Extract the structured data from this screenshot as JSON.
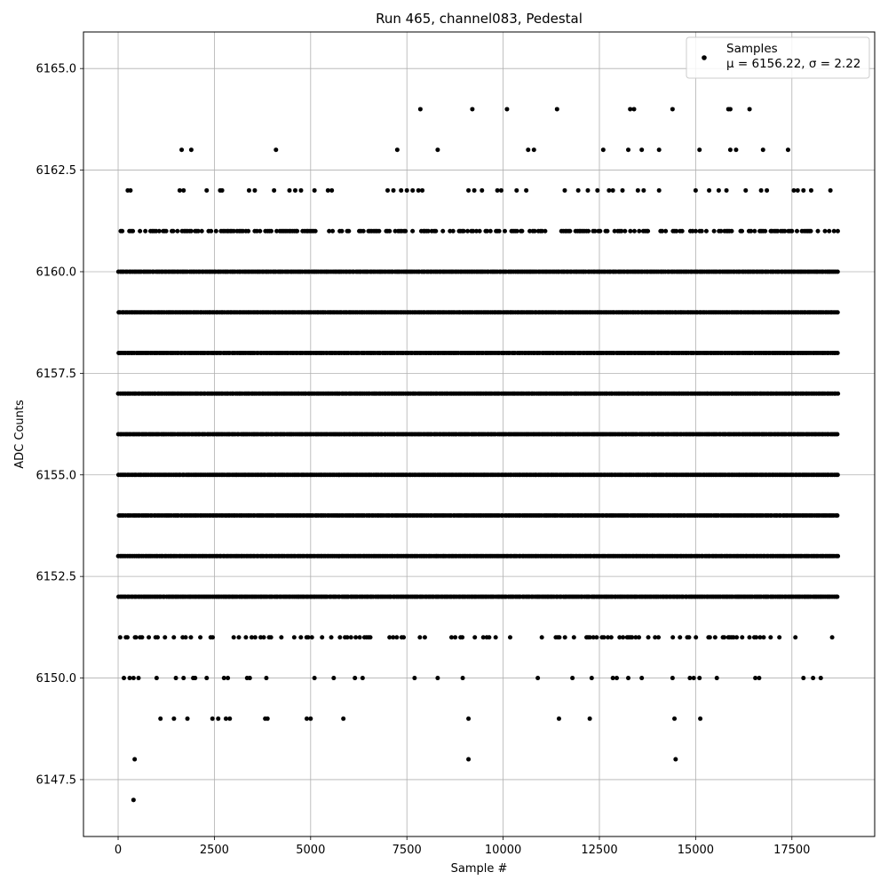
{
  "chart_data": {
    "type": "scatter",
    "title": "Run 465, channel083, Pedestal",
    "xlabel": "Sample #",
    "ylabel": "ADC Counts",
    "xlim": [
      -900,
      19650
    ],
    "ylim": [
      6146.1,
      6165.9
    ],
    "xticks": [
      0,
      2500,
      5000,
      7500,
      10000,
      12500,
      15000,
      17500
    ],
    "yticks": [
      6147.5,
      6150.0,
      6152.5,
      6155.0,
      6157.5,
      6160.0,
      6162.5,
      6165.0
    ],
    "grid": true,
    "legend_position": "top-right",
    "color": "#000000",
    "series": [
      {
        "name": "Samples",
        "stats_label": "μ = 6156.22, σ = 2.22",
        "n_samples": 18750,
        "dense_levels": [
          6152,
          6153,
          6154,
          6155,
          6156,
          6157,
          6158,
          6159,
          6160
        ],
        "sparse_points": [
          {
            "x": 400,
            "y": 6147
          },
          {
            "x": 430,
            "y": 6148
          },
          {
            "x": 9100,
            "y": 6148
          },
          {
            "x": 14480,
            "y": 6148
          },
          {
            "x": 1100,
            "y": 6149
          },
          {
            "x": 1450,
            "y": 6149
          },
          {
            "x": 1800,
            "y": 6149
          },
          {
            "x": 2450,
            "y": 6149
          },
          {
            "x": 2600,
            "y": 6149
          },
          {
            "x": 2800,
            "y": 6149
          },
          {
            "x": 2900,
            "y": 6149
          },
          {
            "x": 3820,
            "y": 6149
          },
          {
            "x": 3880,
            "y": 6149
          },
          {
            "x": 4900,
            "y": 6149
          },
          {
            "x": 5000,
            "y": 6149
          },
          {
            "x": 5850,
            "y": 6149
          },
          {
            "x": 9100,
            "y": 6149
          },
          {
            "x": 11450,
            "y": 6149
          },
          {
            "x": 12250,
            "y": 6149
          },
          {
            "x": 14450,
            "y": 6149
          },
          {
            "x": 15120,
            "y": 6149
          },
          {
            "x": 150,
            "y": 6150
          },
          {
            "x": 300,
            "y": 6150
          },
          {
            "x": 400,
            "y": 6150
          },
          {
            "x": 530,
            "y": 6150
          },
          {
            "x": 1000,
            "y": 6150
          },
          {
            "x": 1500,
            "y": 6150
          },
          {
            "x": 1700,
            "y": 6150
          },
          {
            "x": 1950,
            "y": 6150
          },
          {
            "x": 2000,
            "y": 6150
          },
          {
            "x": 2300,
            "y": 6150
          },
          {
            "x": 2750,
            "y": 6150
          },
          {
            "x": 2850,
            "y": 6150
          },
          {
            "x": 3350,
            "y": 6150
          },
          {
            "x": 3420,
            "y": 6150
          },
          {
            "x": 3850,
            "y": 6150
          },
          {
            "x": 5100,
            "y": 6150
          },
          {
            "x": 5600,
            "y": 6150
          },
          {
            "x": 6150,
            "y": 6150
          },
          {
            "x": 6350,
            "y": 6150
          },
          {
            "x": 7700,
            "y": 6150
          },
          {
            "x": 8300,
            "y": 6150
          },
          {
            "x": 8950,
            "y": 6150
          },
          {
            "x": 10900,
            "y": 6150
          },
          {
            "x": 11800,
            "y": 6150
          },
          {
            "x": 12300,
            "y": 6150
          },
          {
            "x": 12850,
            "y": 6150
          },
          {
            "x": 12950,
            "y": 6150
          },
          {
            "x": 13250,
            "y": 6150
          },
          {
            "x": 13600,
            "y": 6150
          },
          {
            "x": 14400,
            "y": 6150
          },
          {
            "x": 14850,
            "y": 6150
          },
          {
            "x": 14950,
            "y": 6150
          },
          {
            "x": 15100,
            "y": 6150
          },
          {
            "x": 15550,
            "y": 6150
          },
          {
            "x": 16550,
            "y": 6150
          },
          {
            "x": 16650,
            "y": 6150
          },
          {
            "x": 17800,
            "y": 6150
          },
          {
            "x": 18050,
            "y": 6150
          },
          {
            "x": 18250,
            "y": 6150
          },
          {
            "x": 7250,
            "y": 6163
          },
          {
            "x": 8300,
            "y": 6163
          },
          {
            "x": 10650,
            "y": 6163
          },
          {
            "x": 10800,
            "y": 6163
          },
          {
            "x": 1650,
            "y": 6163
          },
          {
            "x": 1900,
            "y": 6163
          },
          {
            "x": 4100,
            "y": 6163
          },
          {
            "x": 12600,
            "y": 6163
          },
          {
            "x": 13250,
            "y": 6163
          },
          {
            "x": 13600,
            "y": 6163
          },
          {
            "x": 14050,
            "y": 6163
          },
          {
            "x": 15100,
            "y": 6163
          },
          {
            "x": 15900,
            "y": 6163
          },
          {
            "x": 16050,
            "y": 6163
          },
          {
            "x": 16750,
            "y": 6163
          },
          {
            "x": 17400,
            "y": 6163
          },
          {
            "x": 7850,
            "y": 6164
          },
          {
            "x": 9200,
            "y": 6164
          },
          {
            "x": 10100,
            "y": 6164
          },
          {
            "x": 11400,
            "y": 6164
          },
          {
            "x": 13300,
            "y": 6164
          },
          {
            "x": 13400,
            "y": 6164
          },
          {
            "x": 14400,
            "y": 6164
          },
          {
            "x": 15850,
            "y": 6164
          },
          {
            "x": 15900,
            "y": 6164
          },
          {
            "x": 16400,
            "y": 6164
          },
          {
            "x": 250,
            "y": 6162
          },
          {
            "x": 320,
            "y": 6162
          },
          {
            "x": 1600,
            "y": 6162
          },
          {
            "x": 1700,
            "y": 6162
          },
          {
            "x": 2300,
            "y": 6162
          },
          {
            "x": 2650,
            "y": 6162
          },
          {
            "x": 2700,
            "y": 6162
          },
          {
            "x": 3400,
            "y": 6162
          },
          {
            "x": 3550,
            "y": 6162
          },
          {
            "x": 4050,
            "y": 6162
          },
          {
            "x": 4450,
            "y": 6162
          },
          {
            "x": 4600,
            "y": 6162
          },
          {
            "x": 4750,
            "y": 6162
          },
          {
            "x": 5100,
            "y": 6162
          },
          {
            "x": 5450,
            "y": 6162
          },
          {
            "x": 5550,
            "y": 6162
          },
          {
            "x": 7000,
            "y": 6162
          },
          {
            "x": 7150,
            "y": 6162
          },
          {
            "x": 7350,
            "y": 6162
          },
          {
            "x": 7500,
            "y": 6162
          },
          {
            "x": 7650,
            "y": 6162
          },
          {
            "x": 7800,
            "y": 6162
          },
          {
            "x": 7900,
            "y": 6162
          },
          {
            "x": 9100,
            "y": 6162
          },
          {
            "x": 9250,
            "y": 6162
          },
          {
            "x": 9450,
            "y": 6162
          },
          {
            "x": 9850,
            "y": 6162
          },
          {
            "x": 9950,
            "y": 6162
          },
          {
            "x": 10350,
            "y": 6162
          },
          {
            "x": 10600,
            "y": 6162
          },
          {
            "x": 11600,
            "y": 6162
          },
          {
            "x": 11950,
            "y": 6162
          },
          {
            "x": 12200,
            "y": 6162
          },
          {
            "x": 12450,
            "y": 6162
          },
          {
            "x": 12750,
            "y": 6162
          },
          {
            "x": 12850,
            "y": 6162
          },
          {
            "x": 13100,
            "y": 6162
          },
          {
            "x": 13500,
            "y": 6162
          },
          {
            "x": 13650,
            "y": 6162
          },
          {
            "x": 14050,
            "y": 6162
          },
          {
            "x": 15000,
            "y": 6162
          },
          {
            "x": 15350,
            "y": 6162
          },
          {
            "x": 15600,
            "y": 6162
          },
          {
            "x": 15800,
            "y": 6162
          },
          {
            "x": 16300,
            "y": 6162
          },
          {
            "x": 16700,
            "y": 6162
          },
          {
            "x": 16850,
            "y": 6162
          },
          {
            "x": 17550,
            "y": 6162
          },
          {
            "x": 17650,
            "y": 6162
          },
          {
            "x": 17800,
            "y": 6162
          },
          {
            "x": 18000,
            "y": 6162
          },
          {
            "x": 18500,
            "y": 6162
          }
        ]
      }
    ]
  }
}
